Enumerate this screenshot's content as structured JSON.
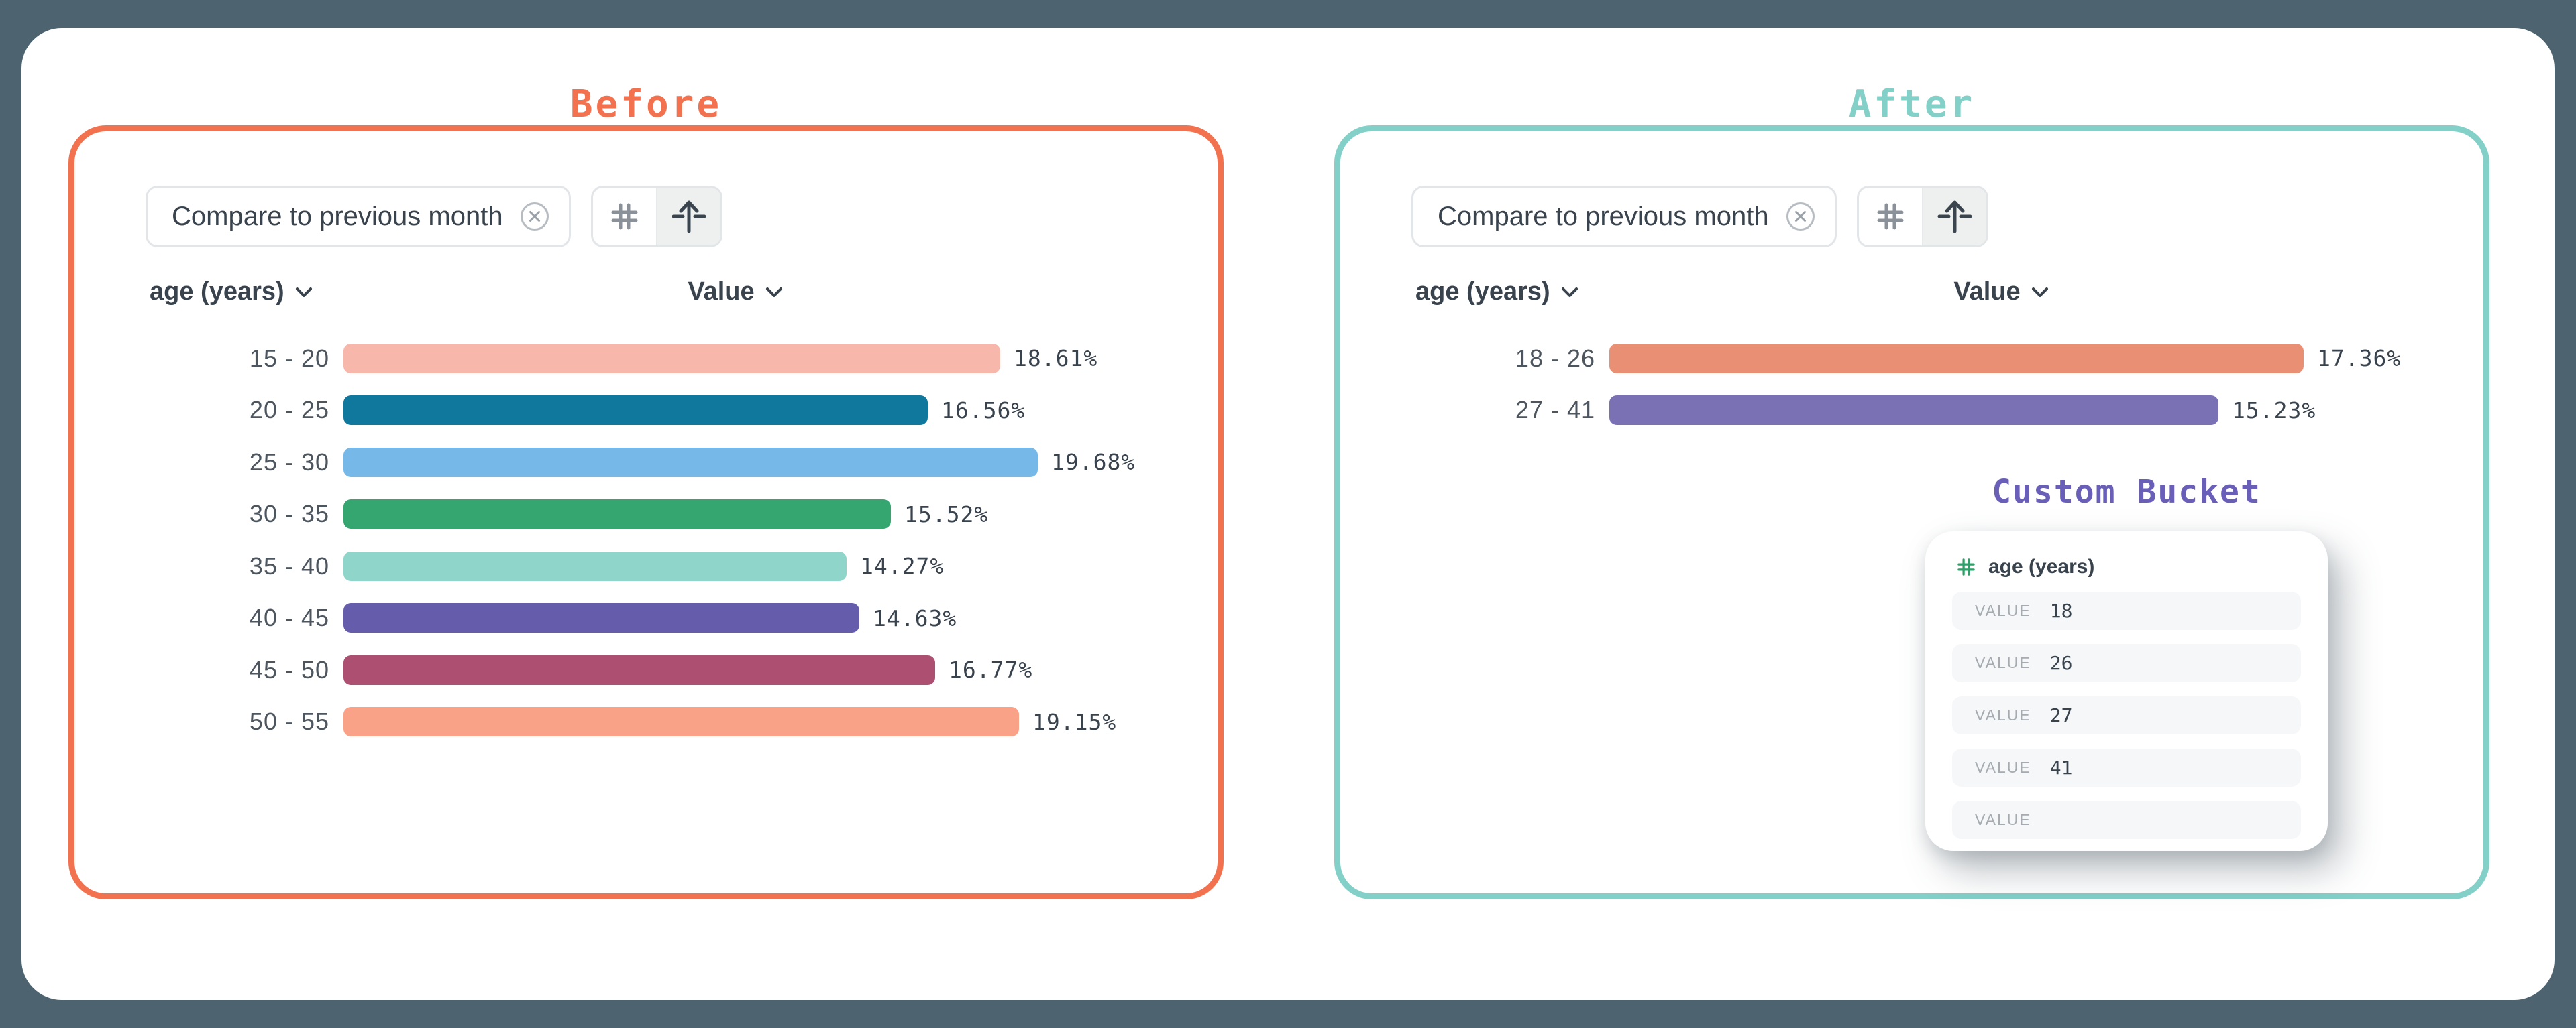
{
  "app": {
    "background_color": "#4d6470",
    "card_color": "#ffffff"
  },
  "icons": {
    "chip_close": "circle-x-icon",
    "toolbar_left": "hash-grid-icon",
    "toolbar_right": "arrow-up-through-line-icon",
    "header_dropdown": "chevron-down-icon",
    "bucket_field": "hash-grid-icon"
  },
  "before_panel": {
    "title": "Before",
    "accent_color": "#f2714e",
    "chip": {
      "label": "Compare to previous month"
    },
    "dimension_header": "age (years)",
    "metric_header": "Value"
  },
  "after_panel": {
    "title": "After",
    "accent_color": "#82d0c8",
    "chip": {
      "label": "Compare to previous month"
    },
    "dimension_header": "age (years)",
    "metric_header": "Value",
    "custom_bucket": {
      "title": "Custom Bucket",
      "title_color": "#6a5fb8",
      "field_label": "age (years)",
      "field_icon_color": "#2f9e68",
      "rows": [
        {
          "label": "VALUE",
          "value": "18"
        },
        {
          "label": "VALUE",
          "value": "26"
        },
        {
          "label": "VALUE",
          "value": "27"
        },
        {
          "label": "VALUE",
          "value": "41"
        },
        {
          "label": "VALUE",
          "value": ""
        }
      ]
    }
  },
  "chart_data": [
    {
      "type": "bar",
      "orientation": "horizontal",
      "title": "Before",
      "xlabel": "Value",
      "ylabel": "age (years)",
      "unit": "%",
      "xlim": [
        0,
        19.68
      ],
      "categories": [
        "15 - 20",
        "20 - 25",
        "25 - 30",
        "30 - 35",
        "35 - 40",
        "40 - 45",
        "45 - 50",
        "50 - 55"
      ],
      "values": [
        18.61,
        16.56,
        19.68,
        15.52,
        14.27,
        14.63,
        16.77,
        19.15
      ],
      "value_labels": [
        "18.61%",
        "16.56%",
        "19.68%",
        "15.52%",
        "14.27%",
        "14.63%",
        "16.77%",
        "19.15%"
      ],
      "bar_colors": [
        "#f8b7ab",
        "#11789d",
        "#76b9e8",
        "#35a670",
        "#8fd5ca",
        "#655dab",
        "#ad4f71",
        "#f9a287"
      ]
    },
    {
      "type": "bar",
      "orientation": "horizontal",
      "title": "After",
      "xlabel": "Value",
      "ylabel": "age (years)",
      "unit": "%",
      "xlim": [
        0,
        17.36
      ],
      "categories": [
        "18 - 26",
        "27 - 41"
      ],
      "values": [
        17.36,
        15.23
      ],
      "value_labels": [
        "17.36%",
        "15.23%"
      ],
      "bar_colors": [
        "#e98f74",
        "#7a71b5"
      ]
    }
  ]
}
